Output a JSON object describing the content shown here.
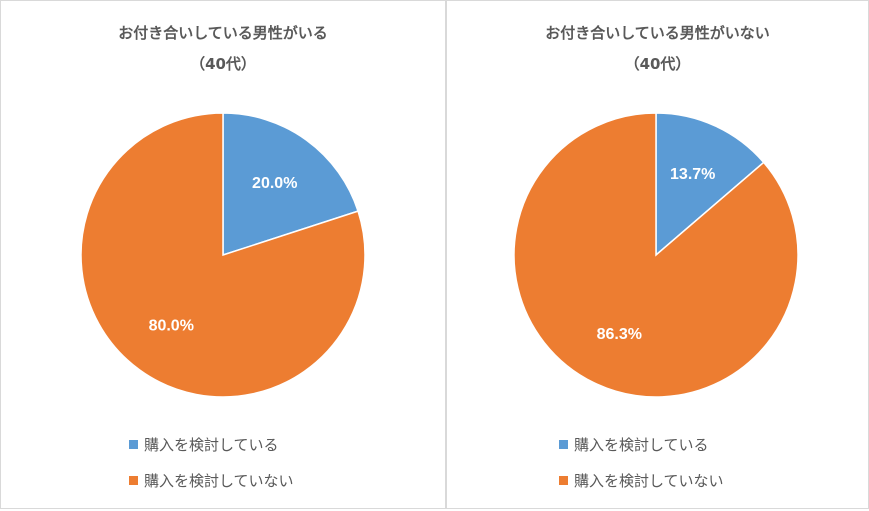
{
  "chart_data": [
    {
      "type": "pie",
      "title": [
        "お付き合いしている男性がいる",
        "（40代）"
      ],
      "categories": [
        "購入を検討している",
        "購入を検討していない"
      ],
      "values": [
        20.0,
        80.0
      ],
      "labels": [
        "20.0%",
        "80.0%"
      ],
      "colors": [
        "#5b9bd5",
        "#ed7d31"
      ],
      "legend": "bottom"
    },
    {
      "type": "pie",
      "title": [
        "お付き合いしている男性がいない",
        "（40代）"
      ],
      "categories": [
        "購入を検討している",
        "購入を検討していない"
      ],
      "values": [
        13.7,
        86.3
      ],
      "labels": [
        "13.7%",
        "86.3%"
      ],
      "colors": [
        "#5b9bd5",
        "#ed7d31"
      ],
      "legend": "bottom"
    }
  ]
}
